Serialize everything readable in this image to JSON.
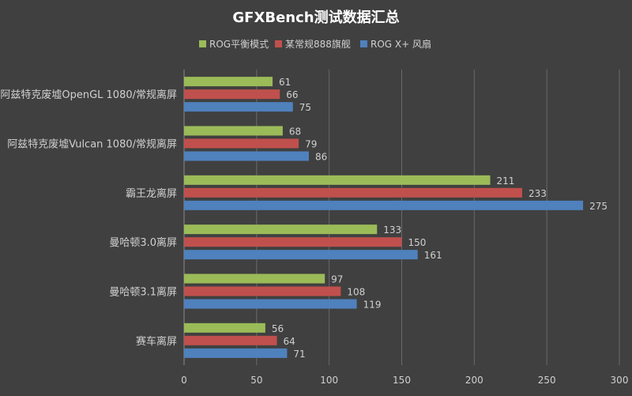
{
  "chart_data": {
    "type": "bar",
    "orientation": "horizontal",
    "title": "GFXBench测试数据汇总",
    "categories": [
      "阿兹特克废墟OpenGL 1080/常规离屏",
      "阿兹特克废墟Vulcan 1080/常规离屏",
      "霸王龙离屏",
      "曼哈顿3.0离屏",
      "曼哈顿3.1离屏",
      "赛车离屏"
    ],
    "series": [
      {
        "name": "ROG平衡模式",
        "color": "#9bbb59",
        "values": [
          61,
          68,
          211,
          133,
          97,
          56
        ]
      },
      {
        "name": "某常规888旗舰",
        "color": "#c0504d",
        "values": [
          66,
          79,
          233,
          150,
          108,
          64
        ]
      },
      {
        "name": "ROG X+ 风扇",
        "color": "#4f81bd",
        "values": [
          75,
          86,
          275,
          161,
          119,
          71
        ]
      }
    ],
    "xlim": [
      0,
      300
    ],
    "xticks": [
      "0",
      "50",
      "100",
      "150",
      "200",
      "250",
      "300"
    ],
    "xlabel": "",
    "ylabel": "",
    "grid": true,
    "legend_position": "top"
  }
}
